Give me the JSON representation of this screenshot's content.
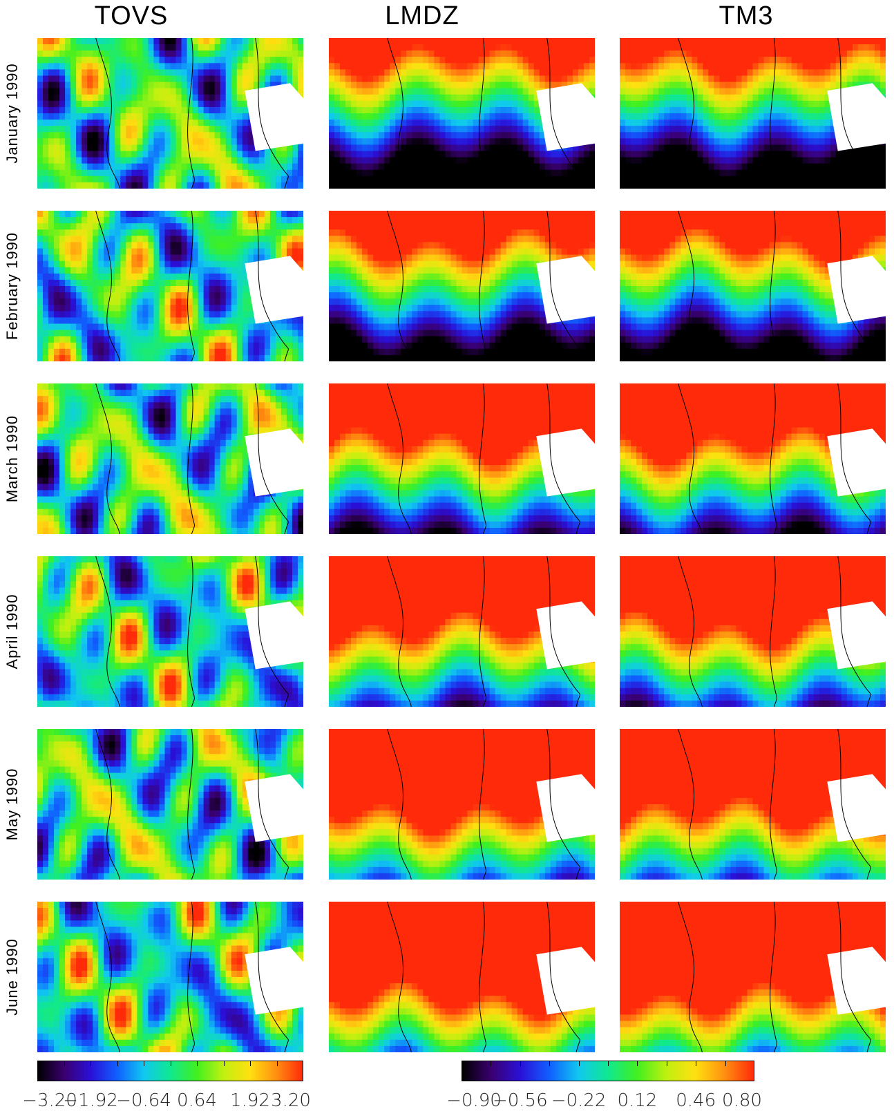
{
  "columns": [
    "TOVS",
    "LMDZ",
    "TM3"
  ],
  "rows": [
    "January 1990",
    "February 1990",
    "March 1990",
    "April 1990",
    "May 1990",
    "June 1990"
  ],
  "colorbars": [
    {
      "labels": [
        "−3.20",
        "−1.92",
        "−0.64",
        "0.64",
        "1.92",
        "3.20"
      ]
    },
    {
      "labels": [
        "−0.90",
        "−0.56",
        "−0.22",
        "0.12",
        "0.46",
        "0.80"
      ]
    }
  ],
  "colors": {
    "scale": [
      "#000000",
      "#3a0070",
      "#2a10d8",
      "#1060ff",
      "#10c8f0",
      "#10e890",
      "#40f020",
      "#c0f010",
      "#ffe010",
      "#ff9010",
      "#ff2a0a"
    ],
    "coastline": "#000000",
    "missing": "#ffffff"
  },
  "chart_data": {
    "type": "heatmap",
    "panels": [
      {
        "column": "TOVS",
        "row": "January 1990",
        "colorbar": 0,
        "pattern": "noisy"
      },
      {
        "column": "LMDZ",
        "row": "January 1990",
        "colorbar": 1,
        "pattern": "band"
      },
      {
        "column": "TM3",
        "row": "January 1990",
        "colorbar": 1,
        "pattern": "band"
      },
      {
        "column": "TOVS",
        "row": "February 1990",
        "colorbar": 0,
        "pattern": "noisy"
      },
      {
        "column": "LMDZ",
        "row": "February 1990",
        "colorbar": 1,
        "pattern": "band"
      },
      {
        "column": "TM3",
        "row": "February 1990",
        "colorbar": 1,
        "pattern": "band"
      },
      {
        "column": "TOVS",
        "row": "March 1990",
        "colorbar": 0,
        "pattern": "noisy"
      },
      {
        "column": "LMDZ",
        "row": "March 1990",
        "colorbar": 1,
        "pattern": "band"
      },
      {
        "column": "TM3",
        "row": "March 1990",
        "colorbar": 1,
        "pattern": "band"
      },
      {
        "column": "TOVS",
        "row": "April 1990",
        "colorbar": 0,
        "pattern": "noisy"
      },
      {
        "column": "LMDZ",
        "row": "April 1990",
        "colorbar": 1,
        "pattern": "band"
      },
      {
        "column": "TM3",
        "row": "April 1990",
        "colorbar": 1,
        "pattern": "band"
      },
      {
        "column": "TOVS",
        "row": "May 1990",
        "colorbar": 0,
        "pattern": "noisy"
      },
      {
        "column": "LMDZ",
        "row": "May 1990",
        "colorbar": 1,
        "pattern": "band"
      },
      {
        "column": "TM3",
        "row": "May 1990",
        "colorbar": 1,
        "pattern": "band"
      },
      {
        "column": "TOVS",
        "row": "June 1990",
        "colorbar": 0,
        "pattern": "noisy"
      },
      {
        "column": "LMDZ",
        "row": "June 1990",
        "colorbar": 1,
        "pattern": "band"
      },
      {
        "column": "TM3",
        "row": "June 1990",
        "colorbar": 1,
        "pattern": "band"
      }
    ],
    "colorbar_ranges": [
      [
        -3.2,
        3.2
      ],
      [
        -0.9,
        0.8
      ]
    ]
  }
}
